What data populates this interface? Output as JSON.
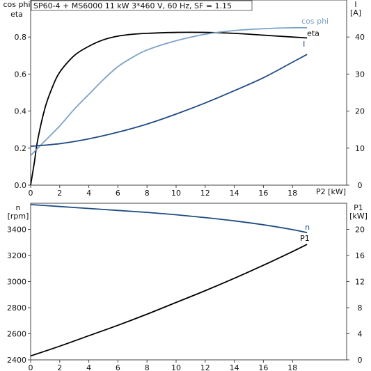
{
  "chart_data": [
    {
      "type": "line",
      "title": "SP60-4 + MS6000   11 kW   3*460 V, 60 Hz, SF = 1.15",
      "xlabel": "P2 [kW]",
      "ylabel_left_line1": "cos phi",
      "ylabel_left_line2": "eta",
      "ylabel_right_line1": "I",
      "ylabel_right_line2": "[A]",
      "xlim": [
        0,
        20
      ],
      "ylim_left": [
        0,
        1
      ],
      "ylim_right": [
        0,
        50
      ],
      "x_ticks": [
        "0",
        "2",
        "4",
        "6",
        "8",
        "10",
        "12",
        "14",
        "16",
        "18"
      ],
      "y_left_ticks": [
        "0.0",
        "0.2",
        "0.4",
        "0.6",
        "0.8"
      ],
      "y_right_ticks": [
        "0",
        "10",
        "20",
        "30",
        "40"
      ],
      "grid": false,
      "series": [
        {
          "name": "eta",
          "axis": "left",
          "color": "#000000",
          "x": [
            0,
            0.25,
            0.5,
            1,
            1.5,
            2,
            3,
            4,
            5,
            6,
            7,
            8,
            10,
            12,
            14,
            16,
            18,
            19
          ],
          "y": [
            0.0,
            0.12,
            0.25,
            0.42,
            0.53,
            0.61,
            0.7,
            0.75,
            0.785,
            0.805,
            0.815,
            0.82,
            0.825,
            0.825,
            0.82,
            0.81,
            0.8,
            0.795
          ]
        },
        {
          "name": "cos phi",
          "axis": "left",
          "color": "#7ba1c6",
          "x": [
            0,
            1,
            2,
            3,
            4,
            5,
            6,
            7,
            8,
            10,
            12,
            14,
            16,
            18,
            19
          ],
          "y": [
            0.16,
            0.24,
            0.32,
            0.41,
            0.49,
            0.57,
            0.64,
            0.69,
            0.73,
            0.78,
            0.815,
            0.835,
            0.845,
            0.85,
            0.85
          ]
        },
        {
          "name": "I",
          "axis": "right",
          "color": "#1e4b82",
          "x": [
            0,
            2,
            4,
            6,
            8,
            10,
            12,
            14,
            16,
            18,
            19
          ],
          "y": [
            10.5,
            11.2,
            12.5,
            14.3,
            16.5,
            19.2,
            22.2,
            25.5,
            29,
            33.2,
            35.3
          ]
        }
      ]
    },
    {
      "type": "line",
      "xlabel": "",
      "ylabel_left_line1": "n",
      "ylabel_left_line2": "[rpm]",
      "ylabel_right_line1": "P1",
      "ylabel_right_line2": "[kW]",
      "xlim": [
        0,
        20
      ],
      "ylim_left": [
        2400,
        3600
      ],
      "ylim_right": [
        0,
        24
      ],
      "x_ticks": [
        "0",
        "2",
        "4",
        "6",
        "8",
        "10",
        "12",
        "14",
        "16",
        "18"
      ],
      "y_left_ticks": [
        "2400",
        "2600",
        "2800",
        "3000",
        "3200",
        "3400"
      ],
      "y_right_ticks": [
        "0",
        "4",
        "8",
        "12",
        "16",
        "20"
      ],
      "grid": false,
      "series": [
        {
          "name": "n",
          "axis": "left",
          "color": "#1e4b82",
          "x": [
            0,
            2,
            4,
            6,
            8,
            10,
            12,
            14,
            16,
            18,
            19
          ],
          "y": [
            3590,
            3575,
            3560,
            3545,
            3530,
            3512,
            3490,
            3465,
            3435,
            3398,
            3375
          ]
        },
        {
          "name": "P1",
          "axis": "right",
          "color": "#000000",
          "x": [
            0,
            2,
            4,
            6,
            8,
            10,
            12,
            14,
            16,
            18,
            19
          ],
          "y": [
            0.6,
            2.1,
            3.7,
            5.3,
            7.0,
            8.8,
            10.6,
            12.5,
            14.5,
            16.6,
            17.7
          ]
        }
      ]
    }
  ]
}
